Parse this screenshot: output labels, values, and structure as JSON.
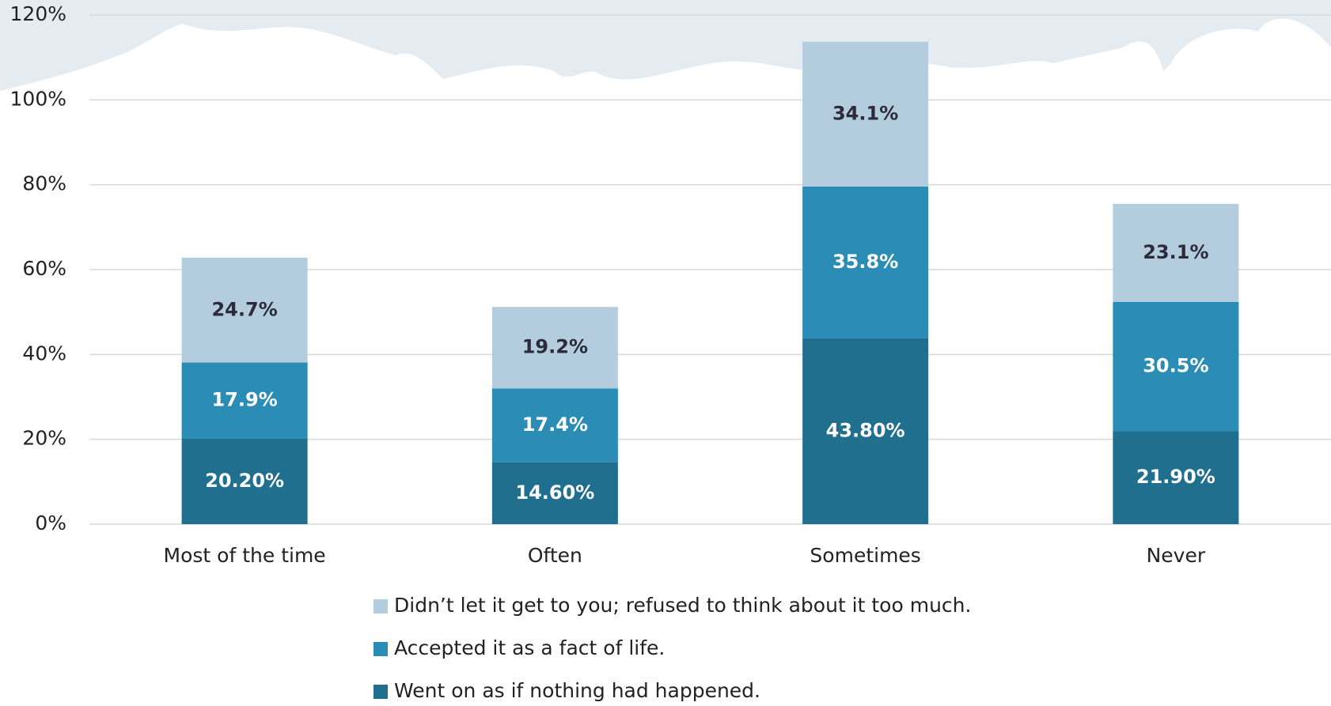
{
  "chart_data": {
    "type": "stacked_bar",
    "categories": [
      "Most of the time",
      "Often",
      "Sometimes",
      "Never"
    ],
    "series": [
      {
        "name": "Went on as if nothing had happened.",
        "color": "#216f8f",
        "values": [
          20.2,
          14.6,
          43.8,
          21.9
        ],
        "value_labels": [
          "20.20%",
          "14.60%",
          "43.80%",
          "21.90%"
        ]
      },
      {
        "name": "Accepted it as a fact of life.",
        "color": "#2b8db6",
        "values": [
          17.9,
          17.4,
          35.8,
          30.5
        ],
        "value_labels": [
          "17.9%",
          "17.4%",
          "35.8%",
          "30.5%"
        ]
      },
      {
        "name": "Didn’t let it get to you; refused to think about it too much.",
        "color": "#b3cddf",
        "values": [
          24.7,
          19.2,
          34.1,
          23.1
        ],
        "value_labels": [
          "24.7%",
          "19.2%",
          "34.1%",
          "23.1%"
        ]
      }
    ],
    "ylim": [
      0,
      120
    ],
    "yticks": [
      {
        "value": 0,
        "label": "0%"
      },
      {
        "value": 20,
        "label": "20%"
      },
      {
        "value": 40,
        "label": "40%"
      },
      {
        "value": 60,
        "label": "60%"
      },
      {
        "value": 80,
        "label": "80%"
      },
      {
        "value": 100,
        "label": "100%"
      },
      {
        "value": 120,
        "label": "120%"
      }
    ],
    "grid": true
  }
}
